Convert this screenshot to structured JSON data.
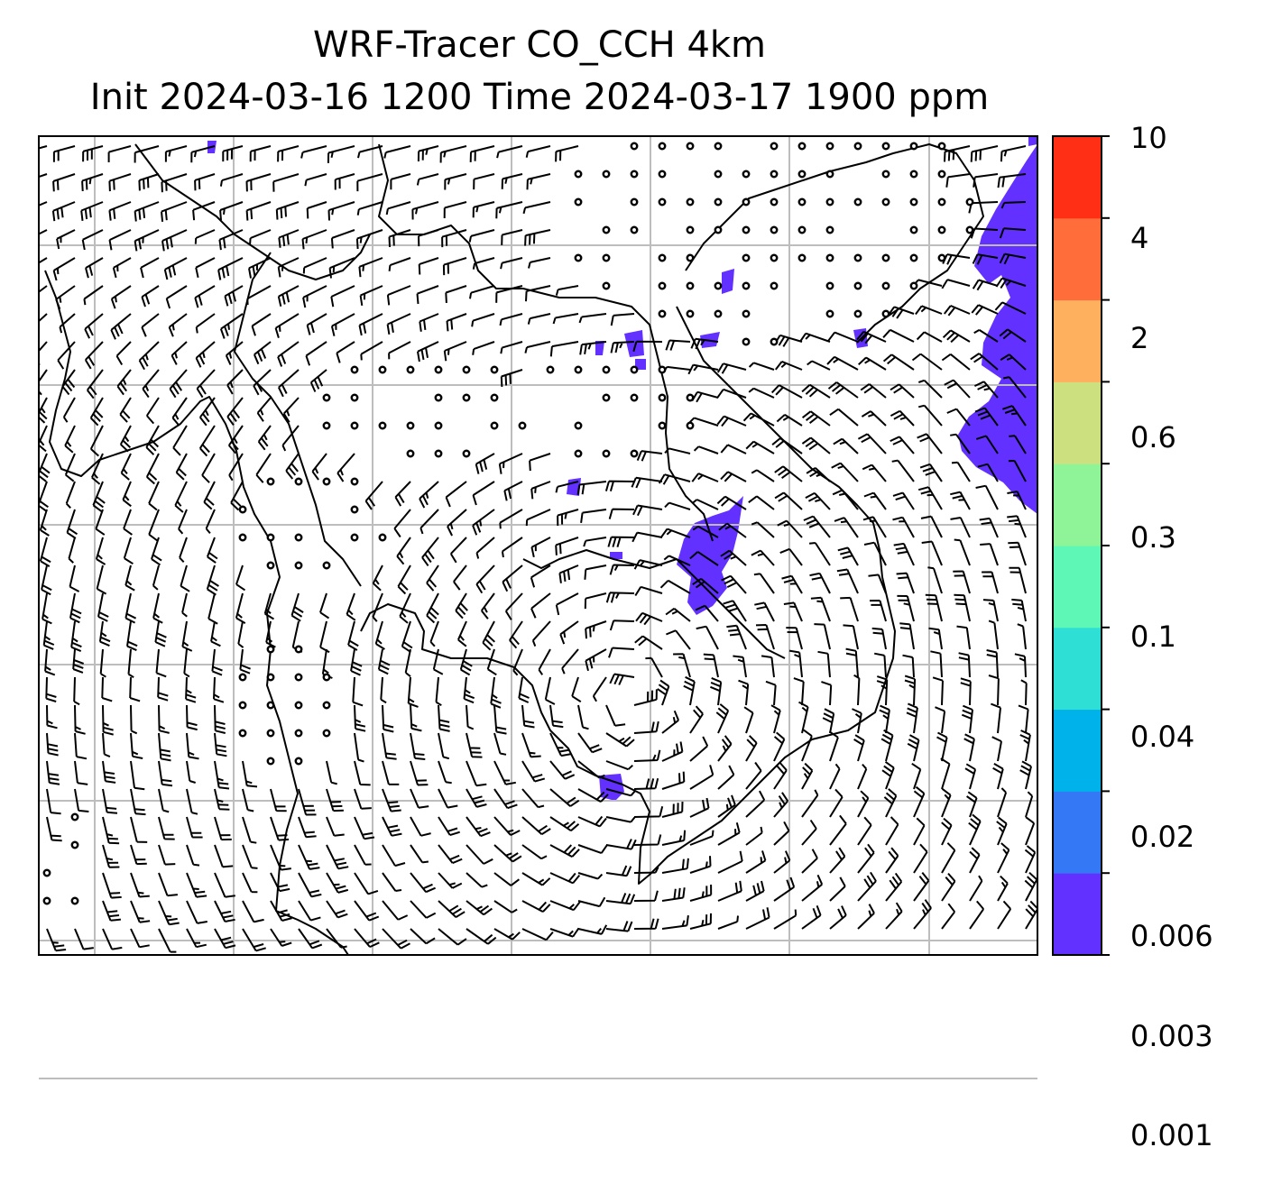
{
  "title": {
    "line1": "WRF-Tracer CO_CCH 4km",
    "line2": "Init 2024-03-16 1200 Time 2024-03-17 1900 ppm"
  },
  "colorbar": {
    "levels": [
      "0.001",
      "0.003",
      "0.006",
      "0.02",
      "0.04",
      "0.1",
      "0.3",
      "0.6",
      "2",
      "4",
      "10"
    ],
    "colors": [
      "#6230ff",
      "#3478f6",
      "#00b2ea",
      "#2ddfd4",
      "#5ff7b6",
      "#8ff497",
      "#cde07f",
      "#ffb05f",
      "#ff6e3a",
      "#ff2f16"
    ]
  },
  "map": {
    "grid_color": "#bdbdbd",
    "tracer_color": "#6230ff",
    "barb_color": "#000000"
  }
}
